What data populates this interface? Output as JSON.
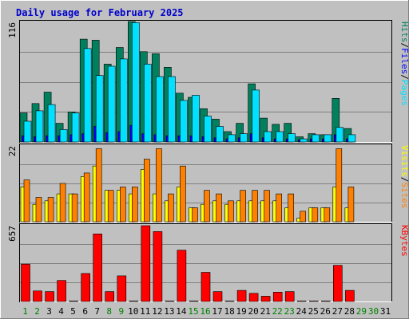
{
  "title": "Daily usage for February 2025",
  "colors": {
    "background": "#c0c0c0",
    "title": "#0000cc",
    "hits": "#00805c",
    "files": "#0000ff",
    "pages": "#00e0ff",
    "visits": "#ffff00",
    "sites": "#ff8000",
    "kbytes": "#ff0000",
    "weekday_label": "#000000",
    "weekend_label": "#008000"
  },
  "chart_data": [
    {
      "type": "bar",
      "panel": "requests",
      "ymax_label": "116",
      "ylim": [
        0,
        116
      ],
      "legend": [
        {
          "key": "pages",
          "label": "Pages"
        },
        {
          "key": "files",
          "label": "Files"
        },
        {
          "key": "hits",
          "label": "Hits"
        }
      ],
      "categories": [
        "1",
        "2",
        "3",
        "4",
        "5",
        "6",
        "7",
        "8",
        "9",
        "10",
        "11",
        "12",
        "13",
        "14",
        "15",
        "16",
        "17",
        "18",
        "19",
        "20",
        "21",
        "22",
        "23",
        "24",
        "25",
        "26",
        "27",
        "28",
        "29",
        "30",
        "31"
      ],
      "series": [
        {
          "name": "Hits",
          "key": "hits",
          "values": [
            28,
            37,
            48,
            18,
            29,
            99,
            98,
            75,
            91,
            116,
            87,
            85,
            72,
            47,
            43,
            32,
            22,
            10,
            18,
            56,
            23,
            17,
            18,
            5,
            8,
            7,
            42,
            13,
            0,
            0,
            0
          ]
        },
        {
          "name": "Files",
          "key": "files",
          "values": [
            6,
            5,
            6,
            6,
            7,
            8,
            15,
            9,
            10,
            16,
            8,
            7,
            6,
            6,
            6,
            5,
            4,
            3,
            4,
            8,
            4,
            3,
            3,
            2,
            3,
            3,
            7,
            3,
            0,
            0,
            0
          ]
        },
        {
          "name": "Pages",
          "key": "pages",
          "values": [
            20,
            30,
            36,
            12,
            28,
            90,
            64,
            73,
            80,
            115,
            75,
            63,
            63,
            40,
            45,
            25,
            15,
            7,
            8,
            50,
            10,
            10,
            8,
            3,
            7,
            7,
            14,
            7,
            0,
            0,
            0
          ]
        }
      ]
    },
    {
      "type": "bar",
      "panel": "visits",
      "ymax_label": "22",
      "ylim": [
        0,
        22
      ],
      "legend": [
        {
          "key": "sites",
          "label": "Sites"
        },
        {
          "key": "visits",
          "label": "Visits"
        }
      ],
      "categories": [
        "1",
        "2",
        "3",
        "4",
        "5",
        "6",
        "7",
        "8",
        "9",
        "10",
        "11",
        "12",
        "13",
        "14",
        "15",
        "16",
        "17",
        "18",
        "19",
        "20",
        "21",
        "22",
        "23",
        "24",
        "25",
        "26",
        "27",
        "28",
        "29",
        "30",
        "31"
      ],
      "series": [
        {
          "name": "Visits",
          "key": "visits",
          "values": [
            10,
            5,
            6,
            8,
            8,
            13,
            16,
            9,
            9,
            8,
            15,
            8,
            6,
            10,
            4,
            5,
            6,
            5,
            6,
            6,
            6,
            6,
            4,
            1,
            4,
            4,
            10,
            4,
            0,
            0,
            0
          ]
        },
        {
          "name": "Sites",
          "key": "sites",
          "values": [
            12,
            7,
            7,
            11,
            8,
            14,
            21,
            9,
            10,
            10,
            18,
            21,
            8,
            16,
            4,
            9,
            8,
            6,
            9,
            9,
            9,
            8,
            8,
            3,
            4,
            4,
            21,
            10,
            0,
            0,
            0
          ]
        }
      ]
    },
    {
      "type": "bar",
      "panel": "kbytes",
      "ymax_label": "657",
      "ylim": [
        0,
        657
      ],
      "legend": [
        {
          "key": "kbytes",
          "label": "KBytes"
        }
      ],
      "categories": [
        "1",
        "2",
        "3",
        "4",
        "5",
        "6",
        "7",
        "8",
        "9",
        "10",
        "11",
        "12",
        "13",
        "14",
        "15",
        "16",
        "17",
        "18",
        "19",
        "20",
        "21",
        "22",
        "23",
        "24",
        "25",
        "26",
        "27",
        "28",
        "29",
        "30",
        "31"
      ],
      "series": [
        {
          "name": "KBytes",
          "key": "kbytes",
          "values": [
            320,
            90,
            85,
            180,
            5,
            240,
            580,
            85,
            220,
            5,
            650,
            600,
            5,
            440,
            5,
            250,
            85,
            5,
            95,
            70,
            45,
            80,
            85,
            5,
            5,
            5,
            310,
            95,
            0,
            0,
            0
          ]
        }
      ]
    }
  ],
  "x_labels": [
    {
      "text": "1",
      "weekend": true
    },
    {
      "text": "2",
      "weekend": true
    },
    {
      "text": "3",
      "weekend": false
    },
    {
      "text": "4",
      "weekend": false
    },
    {
      "text": "5",
      "weekend": false
    },
    {
      "text": "6",
      "weekend": false
    },
    {
      "text": "7",
      "weekend": false
    },
    {
      "text": "8",
      "weekend": true
    },
    {
      "text": "9",
      "weekend": true
    },
    {
      "text": "10",
      "weekend": false
    },
    {
      "text": "11",
      "weekend": false
    },
    {
      "text": "12",
      "weekend": false
    },
    {
      "text": "13",
      "weekend": false
    },
    {
      "text": "14",
      "weekend": false
    },
    {
      "text": "15",
      "weekend": true
    },
    {
      "text": "16",
      "weekend": true
    },
    {
      "text": "17",
      "weekend": false
    },
    {
      "text": "18",
      "weekend": false
    },
    {
      "text": "19",
      "weekend": false
    },
    {
      "text": "20",
      "weekend": false
    },
    {
      "text": "21",
      "weekend": false
    },
    {
      "text": "22",
      "weekend": true
    },
    {
      "text": "23",
      "weekend": true
    },
    {
      "text": "24",
      "weekend": false
    },
    {
      "text": "25",
      "weekend": false
    },
    {
      "text": "26",
      "weekend": false
    },
    {
      "text": "27",
      "weekend": false
    },
    {
      "text": "28",
      "weekend": false
    },
    {
      "text": "29",
      "weekend": true
    },
    {
      "text": "30",
      "weekend": true
    },
    {
      "text": "31",
      "weekend": false
    }
  ]
}
